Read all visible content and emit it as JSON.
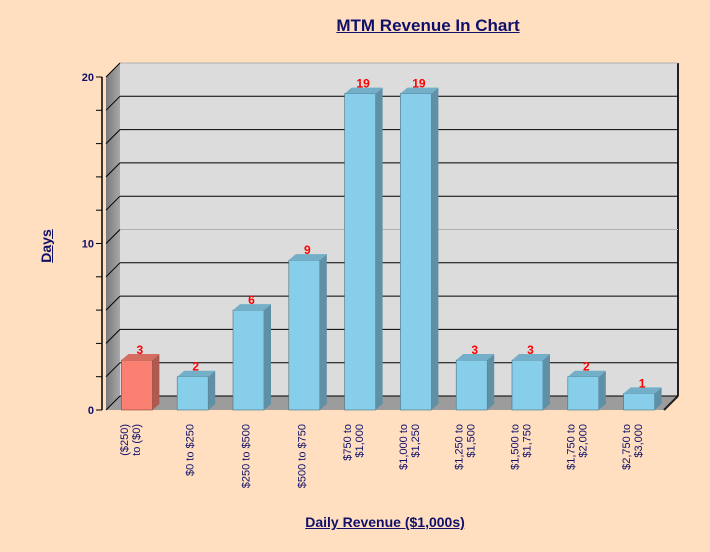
{
  "chart_data": {
    "type": "bar",
    "title": "MTM Revenue In Chart",
    "xlabel": "Daily Revenue ($1,000s)",
    "ylabel": "Days",
    "categories": [
      [
        "($250)",
        "to ($0)"
      ],
      [
        "$0 to $250"
      ],
      [
        "$250 to $500"
      ],
      [
        "$500 to $750"
      ],
      [
        "$750 to",
        "$1,000"
      ],
      [
        "$1,000 to",
        "$1,250"
      ],
      [
        "$1,250 to",
        "$1,500"
      ],
      [
        "$1,500 to",
        "$1,750"
      ],
      [
        "$1,750 to",
        "$2,000"
      ],
      [
        "$2,750 to",
        "$3,000"
      ]
    ],
    "values": [
      3,
      2,
      6,
      9,
      19,
      19,
      3,
      3,
      2,
      1
    ],
    "bar_colors": [
      "#fa8072",
      "#87ceeb",
      "#87ceeb",
      "#87ceeb",
      "#87ceeb",
      "#87ceeb",
      "#87ceeb",
      "#87ceeb",
      "#87ceeb",
      "#87ceeb"
    ],
    "ylim": [
      0,
      20
    ],
    "yticks": [
      "0",
      "10",
      "20"
    ],
    "grid": true,
    "legend": "none",
    "colors": {
      "background": "#ffdfbf",
      "plot": "#dcdcdc",
      "text": "#10106a",
      "data_label": "#ff0000"
    }
  }
}
